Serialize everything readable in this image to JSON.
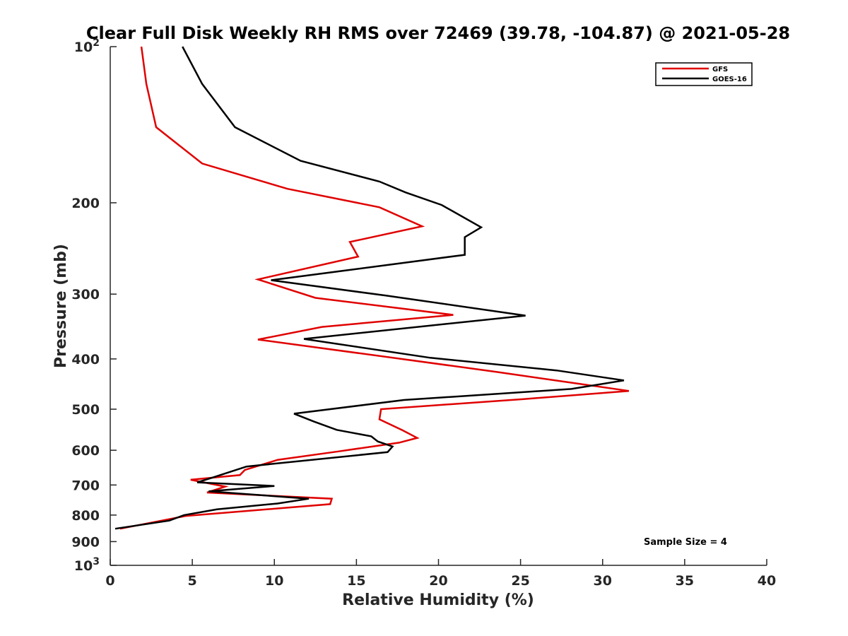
{
  "chart_data": {
    "type": "line",
    "title": "Clear Full Disk Weekly RH RMS over 72469 (39.78, -104.87) @ 2021-05-28",
    "xlabel": "Relative Humidity (%)",
    "ylabel": "Pressure (mb)",
    "xlim": [
      0,
      40
    ],
    "ylim": [
      100,
      1000
    ],
    "y_scale": "log",
    "y_reversed": true,
    "grid": false,
    "legend_position": "top-right",
    "x_ticks": [
      "0",
      "5",
      "10",
      "15",
      "20",
      "25",
      "30",
      "35",
      "40"
    ],
    "y_ticks": [
      {
        "value": 100,
        "base": "10",
        "exp": "2"
      },
      {
        "value": 200,
        "label": "200"
      },
      {
        "value": 300,
        "label": "300"
      },
      {
        "value": 400,
        "label": "400"
      },
      {
        "value": 500,
        "label": "500"
      },
      {
        "value": 600,
        "label": "600"
      },
      {
        "value": 700,
        "label": "700"
      },
      {
        "value": 800,
        "label": "800"
      },
      {
        "value": 900,
        "label": "900"
      },
      {
        "value": 1000,
        "base": "10",
        "exp": "3"
      }
    ],
    "annotation": "Sample Size = 4",
    "series": [
      {
        "name": "GFS",
        "color": "#e00000",
        "x": [
          1.9,
          2.2,
          2.8,
          5.6,
          10.8,
          16.4,
          19.0,
          14.6,
          15.1,
          9.0,
          12.5,
          20.9,
          12.9,
          9.0,
          18.0,
          23.6,
          28.2,
          31.6,
          25.2,
          16.5,
          16.4,
          17.8,
          18.7,
          17.6,
          13.9,
          10.2,
          8.2,
          7.9,
          4.9,
          7.0,
          5.9,
          13.5,
          13.4,
          4.6,
          0.6
        ],
        "y": [
          100,
          118,
          143,
          168,
          188,
          204,
          222,
          238,
          254,
          281,
          305,
          329,
          347,
          367,
          401,
          424,
          445,
          461,
          478,
          500,
          523,
          549,
          568,
          580,
          603,
          626,
          655,
          670,
          684,
          705,
          724,
          744,
          762,
          803,
          850
        ]
      },
      {
        "name": "GOES-16",
        "color": "#000000",
        "x": [
          4.4,
          5.6,
          7.6,
          11.6,
          16.4,
          18.0,
          20.2,
          22.6,
          21.6,
          21.6,
          9.8,
          16.8,
          25.3,
          11.8,
          19.5,
          27.2,
          31.3,
          28.1,
          17.9,
          11.2,
          12.4,
          13.8,
          15.9,
          16.3,
          17.2,
          16.9,
          8.3,
          6.2,
          5.3,
          10.0,
          6.0,
          12.1,
          10.2,
          6.5,
          4.5,
          3.6,
          0.3
        ],
        "y": [
          100,
          118,
          143,
          166,
          182,
          191,
          202,
          223,
          233,
          252,
          282,
          302,
          330,
          366,
          398,
          421,
          440,
          457,
          480,
          510,
          528,
          548,
          564,
          577,
          590,
          605,
          645,
          678,
          692,
          703,
          720,
          744,
          760,
          780,
          800,
          820,
          850
        ]
      }
    ]
  }
}
